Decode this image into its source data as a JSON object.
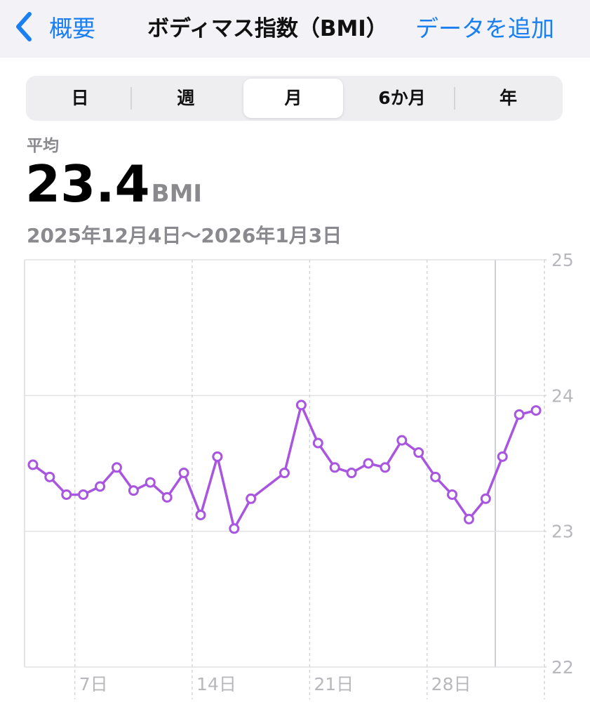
{
  "nav": {
    "back": "概要",
    "title": "ボディマス指数（BMI）",
    "action": "データを追加"
  },
  "segments": [
    "日",
    "週",
    "月",
    "6か月",
    "年"
  ],
  "selected_segment": 2,
  "summary": {
    "label": "平均",
    "value": "23.4",
    "unit": "BMI",
    "range": "2025年12月4日〜2026年1月3日"
  },
  "chart_data": {
    "type": "line",
    "color": "#a855e0",
    "x": [
      4.5,
      5.5,
      6.5,
      7.5,
      8.5,
      9.5,
      10.5,
      11.5,
      12.5,
      13.5,
      14.5,
      15.5,
      16.5,
      17.5,
      19.5,
      20.5,
      21.5,
      22.5,
      23.5,
      24.5,
      25.5,
      26.5,
      27.5,
      28.5,
      29.5,
      30.5,
      31.5,
      32.5,
      33.5,
      34.5
    ],
    "values": [
      23.49,
      23.4,
      23.27,
      23.27,
      23.33,
      23.47,
      23.3,
      23.36,
      23.25,
      23.43,
      23.12,
      23.55,
      23.02,
      23.24,
      23.43,
      23.93,
      23.65,
      23.47,
      23.43,
      23.5,
      23.47,
      23.67,
      23.58,
      23.4,
      23.27,
      23.09,
      23.24,
      23.55,
      23.86,
      23.89
    ],
    "xlim": [
      4,
      35
    ],
    "xticks": [
      {
        "value": 7,
        "label": "7日"
      },
      {
        "value": 14,
        "label": "14日"
      },
      {
        "value": 21,
        "label": "21日"
      },
      {
        "value": 28,
        "label": "28日"
      }
    ],
    "ylim": [
      22,
      25
    ],
    "yticks": [
      22,
      23,
      24,
      25
    ],
    "grid": true
  }
}
